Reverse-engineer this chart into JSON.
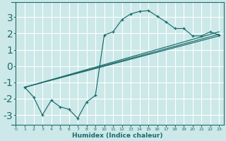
{
  "title": "",
  "xlabel": "Humidex (Indice chaleur)",
  "xlim": [
    -0.5,
    23.5
  ],
  "ylim": [
    -3.6,
    3.9
  ],
  "yticks": [
    -3,
    -2,
    -1,
    0,
    1,
    2,
    3
  ],
  "xticks": [
    0,
    1,
    2,
    3,
    4,
    5,
    6,
    7,
    8,
    9,
    10,
    11,
    12,
    13,
    14,
    15,
    16,
    17,
    18,
    19,
    20,
    21,
    22,
    23
  ],
  "bg_color": "#cce8e8",
  "grid_color": "#ffffff",
  "line_color": "#1a6b6b",
  "main_line": {
    "x": [
      1,
      2,
      3,
      4,
      5,
      6,
      7,
      8,
      9,
      10,
      11,
      12,
      13,
      14,
      15,
      16,
      17,
      18,
      19,
      20,
      21,
      22,
      23
    ],
    "y": [
      -1.3,
      -1.9,
      -3.0,
      -2.1,
      -2.5,
      -2.65,
      -3.2,
      -2.2,
      -1.8,
      1.9,
      2.1,
      2.85,
      3.2,
      3.35,
      3.4,
      3.05,
      2.7,
      2.3,
      2.3,
      1.85,
      1.85,
      2.1,
      1.9
    ]
  },
  "straight_lines": [
    {
      "x": [
        1,
        23
      ],
      "y": [
        -1.3,
        1.85
      ]
    },
    {
      "x": [
        1,
        23
      ],
      "y": [
        -1.3,
        1.95
      ]
    },
    {
      "x": [
        1,
        23
      ],
      "y": [
        -1.3,
        2.1
      ]
    }
  ],
  "figsize": [
    3.2,
    2.0
  ],
  "dpi": 100
}
